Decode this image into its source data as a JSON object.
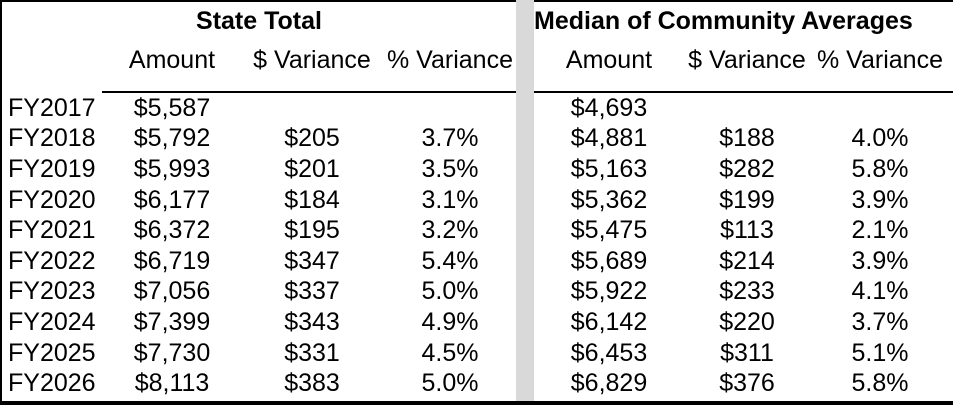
{
  "sections": [
    {
      "title": "State Total",
      "columns": [
        "Amount",
        "$ Variance",
        "% Variance"
      ],
      "has_row_labels": true,
      "rows": [
        {
          "label": "FY2017",
          "amount": "$5,587",
          "dollar_variance": "",
          "pct_variance": ""
        },
        {
          "label": "FY2018",
          "amount": "$5,792",
          "dollar_variance": "$205",
          "pct_variance": "3.7%"
        },
        {
          "label": "FY2019",
          "amount": "$5,993",
          "dollar_variance": "$201",
          "pct_variance": "3.5%"
        },
        {
          "label": "FY2020",
          "amount": "$6,177",
          "dollar_variance": "$184",
          "pct_variance": "3.1%"
        },
        {
          "label": "FY2021",
          "amount": "$6,372",
          "dollar_variance": "$195",
          "pct_variance": "3.2%"
        },
        {
          "label": "FY2022",
          "amount": "$6,719",
          "dollar_variance": "$347",
          "pct_variance": "5.4%"
        },
        {
          "label": "FY2023",
          "amount": "$7,056",
          "dollar_variance": "$337",
          "pct_variance": "5.0%"
        },
        {
          "label": "FY2024",
          "amount": "$7,399",
          "dollar_variance": "$343",
          "pct_variance": "4.9%"
        },
        {
          "label": "FY2025",
          "amount": "$7,730",
          "dollar_variance": "$331",
          "pct_variance": "4.5%"
        },
        {
          "label": "FY2026",
          "amount": "$8,113",
          "dollar_variance": "$383",
          "pct_variance": "5.0%"
        }
      ]
    },
    {
      "title": "Median of Community Averages",
      "columns": [
        "Amount",
        "$ Variance",
        "% Variance"
      ],
      "has_row_labels": false,
      "rows": [
        {
          "amount": "$4,693",
          "dollar_variance": "",
          "pct_variance": ""
        },
        {
          "amount": "$4,881",
          "dollar_variance": "$188",
          "pct_variance": "4.0%"
        },
        {
          "amount": "$5,163",
          "dollar_variance": "$282",
          "pct_variance": "5.8%"
        },
        {
          "amount": "$5,362",
          "dollar_variance": "$199",
          "pct_variance": "3.9%"
        },
        {
          "amount": "$5,475",
          "dollar_variance": "$113",
          "pct_variance": "2.1%"
        },
        {
          "amount": "$5,689",
          "dollar_variance": "$214",
          "pct_variance": "3.9%"
        },
        {
          "amount": "$5,922",
          "dollar_variance": "$233",
          "pct_variance": "4.1%"
        },
        {
          "amount": "$6,142",
          "dollar_variance": "$220",
          "pct_variance": "3.7%"
        },
        {
          "amount": "$6,453",
          "dollar_variance": "$311",
          "pct_variance": "5.1%"
        },
        {
          "amount": "$6,829",
          "dollar_variance": "$376",
          "pct_variance": "5.8%"
        }
      ]
    }
  ],
  "colors": {
    "background": "#ffffff",
    "text": "#000000",
    "border": "#000000",
    "divider": "#d9d9d9"
  },
  "chart_data": {
    "type": "table",
    "row_labels": [
      "FY2017",
      "FY2018",
      "FY2019",
      "FY2020",
      "FY2021",
      "FY2022",
      "FY2023",
      "FY2024",
      "FY2025",
      "FY2026"
    ],
    "tables": [
      {
        "title": "State Total",
        "columns": [
          "Amount",
          "$ Variance",
          "% Variance"
        ],
        "amount": [
          5587,
          5792,
          5993,
          6177,
          6372,
          6719,
          7056,
          7399,
          7730,
          8113
        ],
        "dollar_variance": [
          null,
          205,
          201,
          184,
          195,
          347,
          337,
          343,
          331,
          383
        ],
        "pct_variance": [
          null,
          3.7,
          3.5,
          3.1,
          3.2,
          5.4,
          5.0,
          4.9,
          4.5,
          5.0
        ]
      },
      {
        "title": "Median of Community Averages",
        "columns": [
          "Amount",
          "$ Variance",
          "% Variance"
        ],
        "amount": [
          4693,
          4881,
          5163,
          5362,
          5475,
          5689,
          5922,
          6142,
          6453,
          6829
        ],
        "dollar_variance": [
          null,
          188,
          282,
          199,
          113,
          214,
          233,
          220,
          311,
          376
        ],
        "pct_variance": [
          null,
          4.0,
          5.8,
          3.9,
          2.1,
          3.9,
          4.1,
          3.7,
          5.1,
          5.8
        ]
      }
    ]
  }
}
